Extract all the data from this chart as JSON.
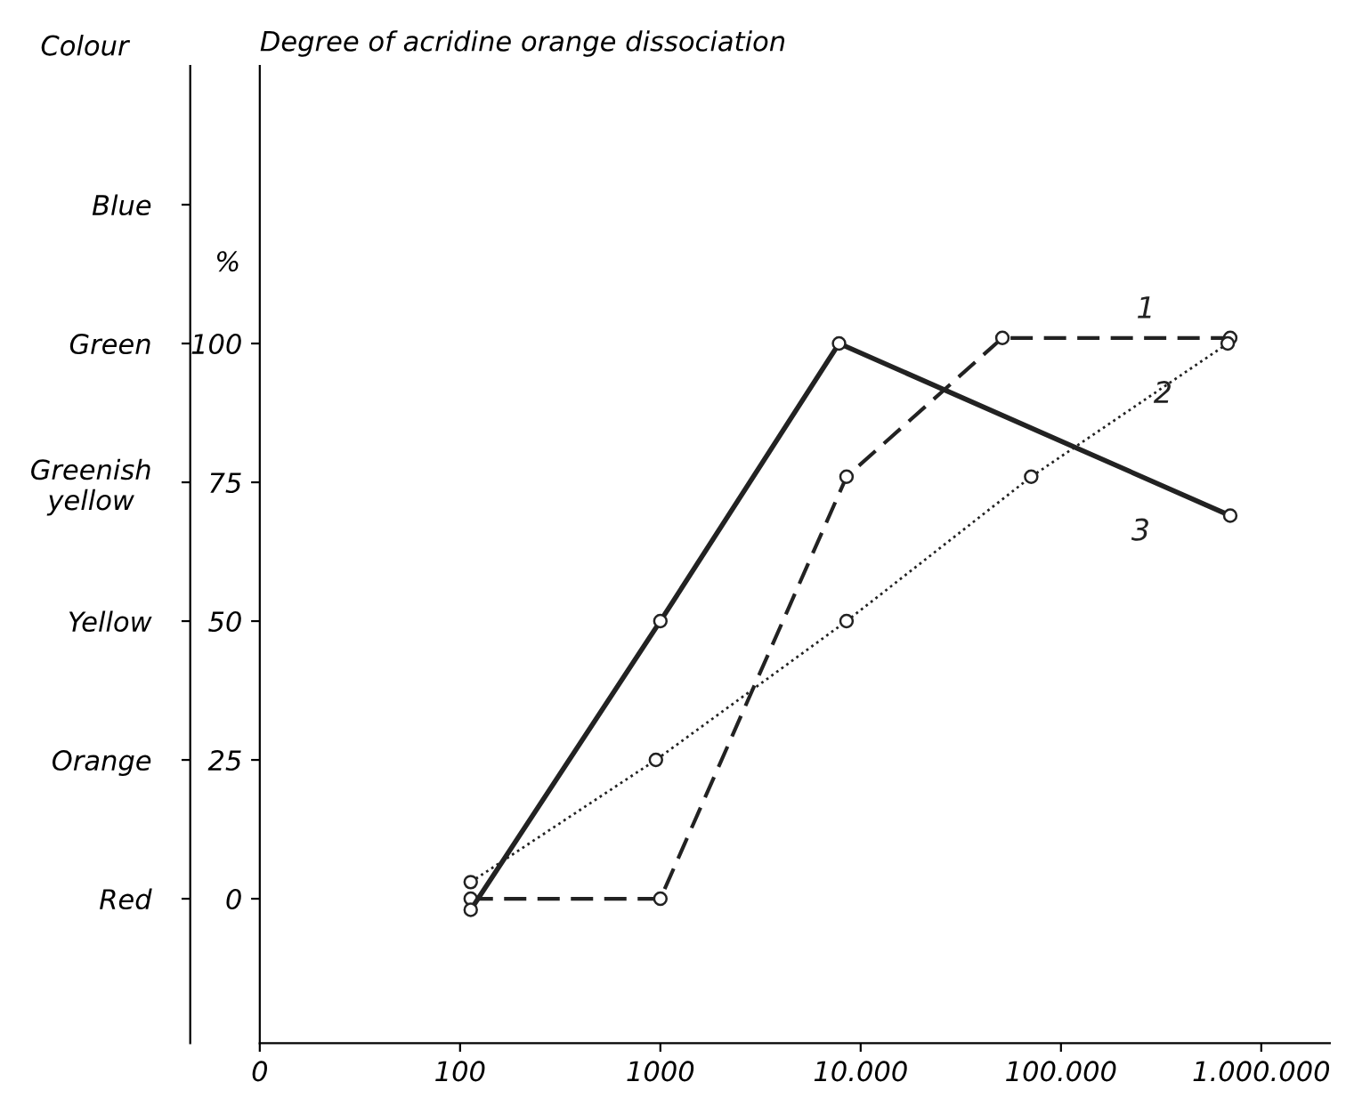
{
  "chart_data": {
    "type": "line",
    "title": "Degree of acridine orange dissociation",
    "ylabel": "%",
    "y2label": "Colour",
    "log": "x",
    "xlim": [
      0,
      2200000
    ],
    "xticks": [
      0,
      100,
      1000,
      {
        "value": 10000,
        "label": "10.000"
      },
      {
        "value": 100000,
        "label": "100.000"
      },
      {
        "value": 1000000,
        "label": "1.000.000"
      }
    ],
    "ylim": [
      -26,
      150
    ],
    "yticks": [
      0,
      25,
      50,
      75,
      100
    ],
    "y2_categories": [
      "Blue",
      "Green",
      "Greenish\nyellow",
      "Yellow",
      "Orange",
      "Red"
    ],
    "grid": false,
    "legend": false,
    "marker": "circle",
    "series": [
      {
        "name": "1",
        "color": "#222222",
        "line_style": "dashed",
        "x": [
          113,
          1000,
          8500,
          51000,
          700000
        ],
        "values": [
          0,
          0,
          76,
          101,
          101
        ]
      },
      {
        "name": "2",
        "color": "#222222",
        "line_style": "dotted",
        "x": [
          113,
          950,
          8500,
          71000,
          680000
        ],
        "values": [
          3,
          25,
          50,
          76,
          100
        ]
      },
      {
        "name": "3",
        "color": "#222222",
        "line_style": "solid",
        "x": [
          113,
          1000,
          7800,
          700000
        ],
        "values": [
          -2,
          50,
          100,
          69
        ]
      }
    ]
  }
}
